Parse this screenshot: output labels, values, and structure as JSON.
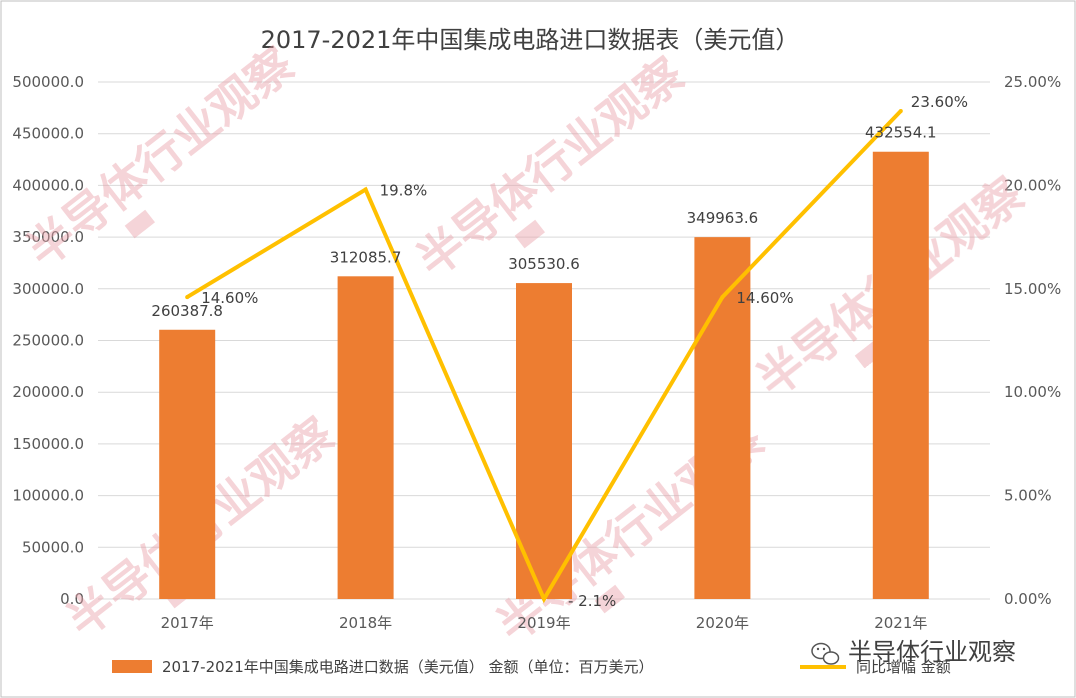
{
  "colors": {
    "bar": "#ED7D31",
    "line": "#FFC000",
    "grid": "#D9D9D9",
    "frame": "#BFBFBF",
    "watermark": "#E8A0A8"
  },
  "chart_data": {
    "type": "bar",
    "title": "2017-2021年中国集成电路进口数据表（美元值）",
    "categories": [
      "2017年",
      "2018年",
      "2019年",
      "2020年",
      "2021年"
    ],
    "series": [
      {
        "name": "2017-2021年中国集成电路进口数据（美元值） 金额（单位：百万美元）",
        "type": "bar",
        "axis": "left",
        "values": [
          260387.8,
          312085.7,
          305530.6,
          349963.6,
          432554.1
        ],
        "labels": [
          "260387.8",
          "312085.7",
          "305530.6",
          "349963.6",
          "432554.1"
        ]
      },
      {
        "name": "同比增幅 金额",
        "type": "line",
        "axis": "right",
        "values": [
          14.6,
          19.8,
          -2.1,
          14.6,
          23.6
        ],
        "labels": [
          "14.60%",
          "19.8%",
          "- 2.1%",
          "14.60%",
          "23.60%"
        ]
      }
    ],
    "y_left": {
      "min": 0,
      "max": 500000,
      "ticks": [
        "0.0",
        "50000.0",
        "100000.0",
        "150000.0",
        "200000.0",
        "250000.0",
        "300000.0",
        "350000.0",
        "400000.0",
        "450000.0",
        "500000.0"
      ]
    },
    "y_right": {
      "min": 0,
      "max": 25,
      "ticks": [
        "0.00%",
        "5.00%",
        "10.00%",
        "15.00%",
        "20.00%",
        "25.00%"
      ]
    },
    "grid": true,
    "legend": "bottom"
  },
  "watermark": {
    "text": "半导体行业观察",
    "wechat_icon": "wechat-icon"
  }
}
